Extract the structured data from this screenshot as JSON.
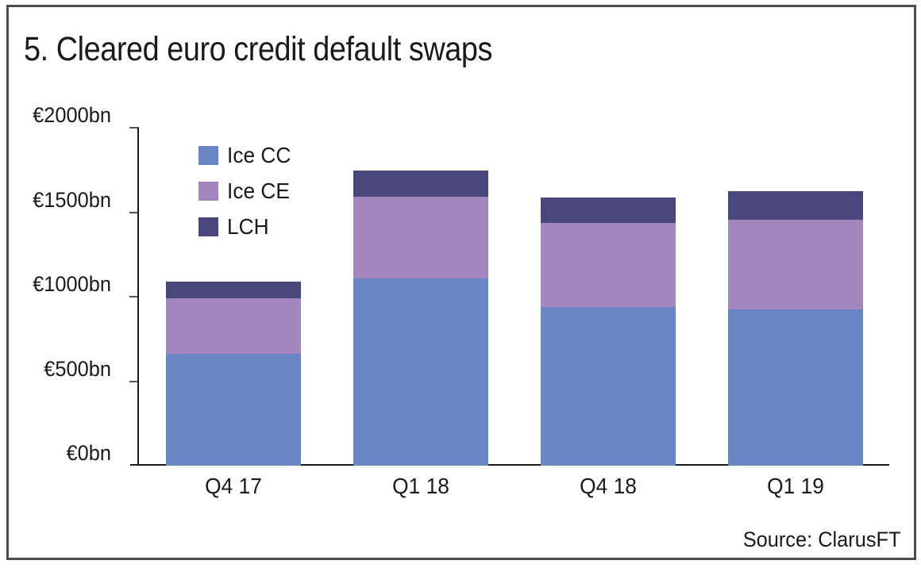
{
  "chart_data": {
    "type": "bar",
    "stacked": true,
    "title": "5. Cleared euro credit default swaps",
    "source": "Source: ClarusFT",
    "unit": "EUR bn",
    "categories": [
      "Q4 17",
      "Q1 18",
      "Q4 18",
      "Q1 19"
    ],
    "series": [
      {
        "name": "Ice CC",
        "color": "#6886C3",
        "values": [
          660,
          1110,
          940,
          925
        ]
      },
      {
        "name": "Ice CE",
        "color": "#A486BE",
        "values": [
          330,
          480,
          495,
          530
        ]
      },
      {
        "name": "LCH",
        "color": "#4A477C",
        "values": [
          100,
          155,
          150,
          170
        ]
      }
    ],
    "totals": [
      1090,
      1745,
      1585,
      1625
    ],
    "ylim": [
      0,
      2000
    ],
    "ytick_step": 500,
    "ytick_labels": [
      "€2000bn",
      "€1500bn",
      "€1000bn",
      "€500bn",
      "€0bn"
    ],
    "legend_position": "top-left-inside",
    "grid": false
  }
}
